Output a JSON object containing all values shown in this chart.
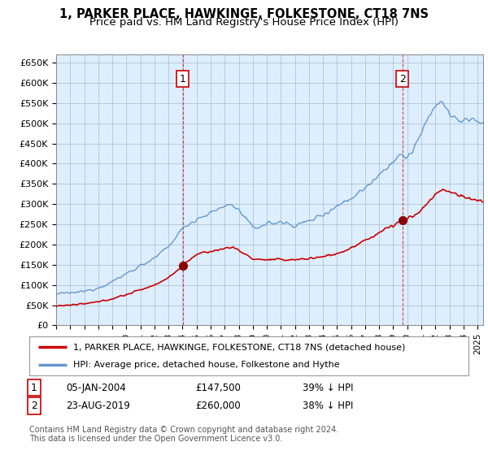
{
  "title": "1, PARKER PLACE, HAWKINGE, FOLKESTONE, CT18 7NS",
  "subtitle": "Price paid vs. HM Land Registry's House Price Index (HPI)",
  "ylim": [
    0,
    670000
  ],
  "yticks": [
    0,
    50000,
    100000,
    150000,
    200000,
    250000,
    300000,
    350000,
    400000,
    450000,
    500000,
    550000,
    600000,
    650000
  ],
  "ytick_labels": [
    "£0",
    "£50K",
    "£100K",
    "£150K",
    "£200K",
    "£250K",
    "£300K",
    "£350K",
    "£400K",
    "£450K",
    "£500K",
    "£550K",
    "£600K",
    "£650K"
  ],
  "xlim_start": 1995.0,
  "xlim_end": 2025.4,
  "sale1_x": 2004.02,
  "sale1_y": 147500,
  "sale1_label": "1",
  "sale2_x": 2019.65,
  "sale2_y": 260000,
  "sale2_label": "2",
  "red_line_color": "#cc0000",
  "blue_line_color": "#6699cc",
  "chart_bg_color": "#ddeeff",
  "vline_color": "#cc0000",
  "background_color": "#ffffff",
  "grid_color": "#aabbcc",
  "legend_label_red": "1, PARKER PLACE, HAWKINGE, FOLKESTONE, CT18 7NS (detached house)",
  "legend_label_blue": "HPI: Average price, detached house, Folkestone and Hythe",
  "table_row1": [
    "1",
    "05-JAN-2004",
    "£147,500",
    "39% ↓ HPI"
  ],
  "table_row2": [
    "2",
    "23-AUG-2019",
    "£260,000",
    "38% ↓ HPI"
  ],
  "footer": "Contains HM Land Registry data © Crown copyright and database right 2024.\nThis data is licensed under the Open Government Licence v3.0.",
  "title_fontsize": 10.5,
  "subtitle_fontsize": 9.5,
  "hpi_keypoints_x": [
    1995.0,
    1996.0,
    1997.0,
    1998.0,
    1999.0,
    2000.0,
    2001.0,
    2002.0,
    2003.0,
    2004.0,
    2005.0,
    2006.0,
    2007.0,
    2007.5,
    2008.0,
    2008.5,
    2009.0,
    2009.5,
    2010.0,
    2011.0,
    2012.0,
    2012.5,
    2013.0,
    2014.0,
    2015.0,
    2016.0,
    2017.0,
    2018.0,
    2019.0,
    2019.5,
    2020.0,
    2020.5,
    2021.0,
    2021.5,
    2022.0,
    2022.3,
    2022.6,
    2022.9,
    2023.0,
    2023.5,
    2024.0,
    2024.3,
    2024.6,
    2025.0,
    2025.4
  ],
  "hpi_keypoints_y": [
    78000,
    80000,
    84000,
    93000,
    108000,
    128000,
    148000,
    165000,
    195000,
    240000,
    263000,
    278000,
    295000,
    300000,
    285000,
    265000,
    240000,
    245000,
    252000,
    255000,
    248000,
    252000,
    258000,
    275000,
    295000,
    315000,
    340000,
    375000,
    405000,
    420000,
    415000,
    440000,
    475000,
    510000,
    545000,
    555000,
    548000,
    530000,
    520000,
    510000,
    505000,
    508000,
    510000,
    505000,
    500000
  ],
  "red_keypoints_x": [
    1995.0,
    1996.0,
    1997.0,
    1998.0,
    1999.0,
    2000.0,
    2001.0,
    2002.0,
    2003.0,
    2004.02,
    2004.5,
    2005.0,
    2006.0,
    2007.0,
    2007.5,
    2008.0,
    2008.5,
    2009.0,
    2009.5,
    2010.0,
    2011.0,
    2012.0,
    2013.0,
    2014.0,
    2015.0,
    2016.0,
    2017.0,
    2018.0,
    2019.0,
    2019.65,
    2020.0,
    2020.5,
    2021.0,
    2021.5,
    2022.0,
    2022.5,
    2023.0,
    2023.5,
    2024.0,
    2024.5,
    2025.0,
    2025.4
  ],
  "red_keypoints_y": [
    48000,
    50000,
    53000,
    58000,
    66000,
    76000,
    88000,
    100000,
    118000,
    147500,
    163000,
    175000,
    183000,
    190000,
    195000,
    185000,
    175000,
    165000,
    163000,
    162000,
    162000,
    163000,
    165000,
    170000,
    178000,
    190000,
    210000,
    230000,
    248000,
    260000,
    265000,
    272000,
    285000,
    305000,
    325000,
    335000,
    330000,
    325000,
    318000,
    312000,
    310000,
    308000
  ]
}
